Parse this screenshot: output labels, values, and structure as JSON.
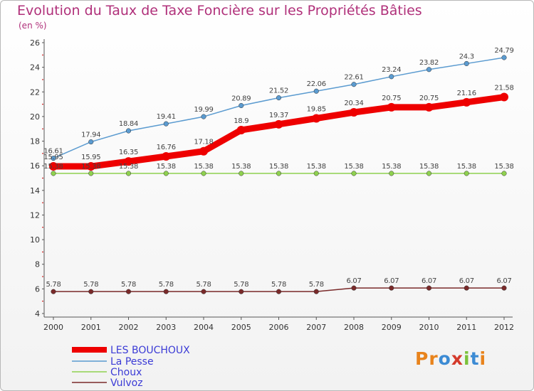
{
  "title": "Evolution du Taux de Taxe Foncière sur les Propriétés Bâties",
  "subtitle": "(en %)",
  "logo": {
    "text": "Proxiti",
    "colors": [
      "#e8831c",
      "#e8831c",
      "#3c8bd4",
      "#d43a2b",
      "#7cc13a",
      "#3c8bd4",
      "#e8831c"
    ]
  },
  "chart_data": {
    "type": "line",
    "x": [
      "2000",
      "2001",
      "2002",
      "2003",
      "2004",
      "2005",
      "2006",
      "2007",
      "2008",
      "2009",
      "2010",
      "2011",
      "2012"
    ],
    "ylim": [
      4,
      26
    ],
    "yticks": [
      4,
      6,
      8,
      10,
      12,
      14,
      16,
      18,
      20,
      22,
      24,
      26
    ],
    "grid": false,
    "legend_position": "bottom-left",
    "series": [
      {
        "name": "LES BOUCHOUX",
        "color": "#ee0000",
        "bold": true,
        "values": [
          15.95,
          15.95,
          16.35,
          16.76,
          17.18,
          18.9,
          19.37,
          19.85,
          20.34,
          20.75,
          20.75,
          21.16,
          21.58
        ],
        "labels": [
          "15.95",
          "15.95",
          "16.35",
          "16.76",
          "17.18",
          "18.9",
          "19.37",
          "19.85",
          "20.34",
          "20.75",
          "20.75",
          "21.16",
          "21.58"
        ]
      },
      {
        "name": "La Pesse",
        "color": "#5b9bd0",
        "bold": false,
        "values": [
          16.61,
          17.94,
          18.84,
          19.41,
          19.99,
          20.89,
          21.52,
          22.06,
          22.61,
          23.24,
          23.82,
          24.3,
          24.79
        ],
        "labels": [
          "16.61",
          "17.94",
          "18.84",
          "19.41",
          "19.99",
          "20.89",
          "21.52",
          "22.06",
          "22.61",
          "23.24",
          "23.82",
          "24.3",
          "24.79"
        ]
      },
      {
        "name": "Choux",
        "color": "#8fd14f",
        "bold": false,
        "values": [
          15.38,
          15.38,
          15.38,
          15.38,
          15.38,
          15.38,
          15.38,
          15.38,
          15.38,
          15.38,
          15.38,
          15.38,
          15.38
        ],
        "labels": [
          "15.38",
          "15.38",
          "15.38",
          "15.38",
          "15.38",
          "15.38",
          "15.38",
          "15.38",
          "15.38",
          "15.38",
          "15.38",
          "15.38",
          "15.38"
        ]
      },
      {
        "name": "Vulvoz",
        "color": "#7a2a2a",
        "bold": false,
        "values": [
          5.78,
          5.78,
          5.78,
          5.78,
          5.78,
          5.78,
          5.78,
          5.78,
          6.07,
          6.07,
          6.07,
          6.07,
          6.07
        ],
        "labels": [
          "5.78",
          "5.78",
          "5.78",
          "5.78",
          "5.78",
          "5.78",
          "5.78",
          "5.78",
          "6.07",
          "6.07",
          "6.07",
          "6.07",
          "6.07"
        ]
      }
    ]
  }
}
